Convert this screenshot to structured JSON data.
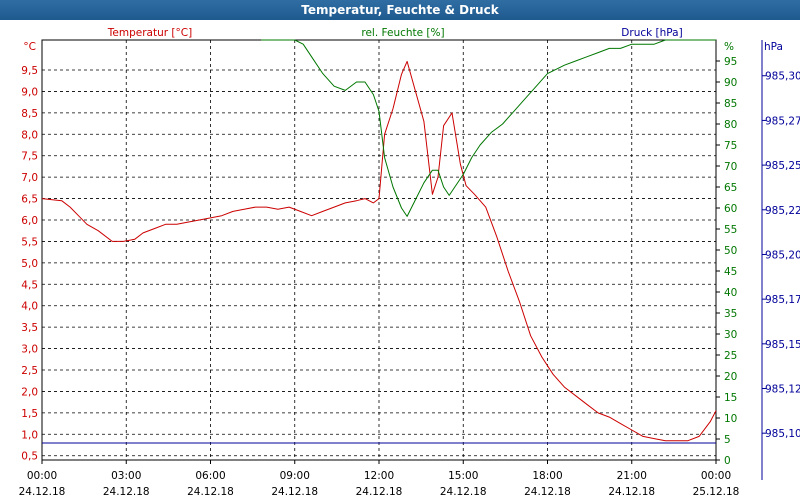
{
  "window": {
    "title": "Temperatur, Feuchte & Druck"
  },
  "chart_data": {
    "type": "line",
    "title": "Temperatur, Feuchte & Druck",
    "x_ticks": [
      {
        "time": "00:00",
        "date": "24.12.18"
      },
      {
        "time": "03:00",
        "date": "24.12.18"
      },
      {
        "time": "06:00",
        "date": "24.12.18"
      },
      {
        "time": "09:00",
        "date": "24.12.18"
      },
      {
        "time": "12:00",
        "date": "24.12.18"
      },
      {
        "time": "15:00",
        "date": "24.12.18"
      },
      {
        "time": "18:00",
        "date": "24.12.18"
      },
      {
        "time": "21:00",
        "date": "24.12.18"
      },
      {
        "time": "00:00",
        "date": "25.12.18"
      }
    ],
    "xlim": [
      0,
      24
    ],
    "axes": {
      "temp": {
        "label": "Temperatur [°C]",
        "unit": "°C",
        "min": 0.4,
        "max": 10.2,
        "ticks": [
          "0,5",
          "1,0",
          "1,5",
          "2,0",
          "2,5",
          "3,0",
          "3,5",
          "4,0",
          "4,5",
          "5,0",
          "5,5",
          "6,0",
          "6,5",
          "7,0",
          "7,5",
          "8,0",
          "8,5",
          "9,0",
          "9,5"
        ],
        "color": "#cc0000"
      },
      "hum": {
        "label": "rel. Feuchte [%]",
        "unit": "%",
        "min": 0,
        "max": 100,
        "ticks": [
          "0",
          "5",
          "10",
          "15",
          "20",
          "25",
          "30",
          "35",
          "40",
          "45",
          "50",
          "55",
          "60",
          "65",
          "70",
          "75",
          "80",
          "85",
          "90",
          "95"
        ],
        "color": "#007700"
      },
      "press": {
        "label": "Druck [hPa]",
        "unit": "hPa",
        "min": 985.085,
        "max": 985.32,
        "ticks": [
          "985,10",
          "985,12",
          "985,15",
          "985,17",
          "985,20",
          "985,22",
          "985,25",
          "985,27",
          "985,30"
        ],
        "tick_values": [
          985.1,
          985.125,
          985.15,
          985.175,
          985.2,
          985.225,
          985.25,
          985.275,
          985.3
        ],
        "color": "#000099"
      }
    },
    "series": [
      {
        "name": "Temperatur [°C]",
        "axis": "temp",
        "color": "#cc0000",
        "x": [
          0,
          0.7,
          1.0,
          1.3,
          1.6,
          2.0,
          2.5,
          2.9,
          3.3,
          3.6,
          4.0,
          4.4,
          4.8,
          5.2,
          5.6,
          6.0,
          6.4,
          6.8,
          7.2,
          7.6,
          8.0,
          8.4,
          8.8,
          9.2,
          9.6,
          10.0,
          10.4,
          10.8,
          11.2,
          11.5,
          11.8,
          12.0,
          12.2,
          12.5,
          12.8,
          13.0,
          13.3,
          13.6,
          13.9,
          14.1,
          14.3,
          14.6,
          14.9,
          15.1,
          15.4,
          15.8,
          16.2,
          16.6,
          17.0,
          17.4,
          17.8,
          18.2,
          18.6,
          19.0,
          19.4,
          19.8,
          20.2,
          20.6,
          21.0,
          21.4,
          21.8,
          22.2,
          22.6,
          23.0,
          23.4,
          23.8,
          24.0
        ],
        "y": [
          6.5,
          6.45,
          6.3,
          6.1,
          5.9,
          5.75,
          5.5,
          5.5,
          5.55,
          5.7,
          5.8,
          5.9,
          5.9,
          5.95,
          6.0,
          6.05,
          6.1,
          6.2,
          6.25,
          6.3,
          6.3,
          6.25,
          6.3,
          6.2,
          6.1,
          6.2,
          6.3,
          6.4,
          6.45,
          6.5,
          6.4,
          6.5,
          8.0,
          8.6,
          9.4,
          9.7,
          9.0,
          8.3,
          6.6,
          7.0,
          8.2,
          8.5,
          7.3,
          6.8,
          6.6,
          6.3,
          5.6,
          4.8,
          4.1,
          3.3,
          2.8,
          2.4,
          2.1,
          1.9,
          1.7,
          1.5,
          1.4,
          1.25,
          1.1,
          0.95,
          0.9,
          0.85,
          0.85,
          0.85,
          0.95,
          1.3,
          1.55
        ]
      },
      {
        "name": "rel. Feuchte [%]",
        "axis": "hum",
        "color": "#007700",
        "x": [
          7.8,
          8.5,
          9.0,
          9.3,
          9.6,
          10.0,
          10.4,
          10.8,
          11.2,
          11.5,
          11.8,
          12.0,
          12.2,
          12.5,
          12.8,
          13.0,
          13.3,
          13.6,
          13.9,
          14.1,
          14.3,
          14.5,
          14.7,
          15.0,
          15.3,
          15.6,
          16.0,
          16.4,
          16.8,
          17.2,
          17.6,
          18.0,
          18.3,
          18.6,
          19.0,
          19.4,
          19.8,
          20.2,
          20.6,
          21.0,
          21.4,
          21.8,
          22.2,
          22.6,
          23.0,
          23.4,
          23.8,
          24.0
        ],
        "y": [
          100,
          100,
          100,
          99,
          96,
          92,
          89,
          88,
          90,
          90,
          87,
          83,
          72,
          65,
          60,
          58,
          62,
          66,
          69,
          69,
          65,
          63,
          65,
          68,
          72,
          75,
          78,
          80,
          83,
          86,
          89,
          92,
          93,
          94,
          95,
          96,
          97,
          98,
          98,
          99,
          99,
          99,
          100,
          100,
          100,
          100,
          100,
          100
        ]
      },
      {
        "name": "Druck [hPa]",
        "axis": "press",
        "color": "#000099",
        "x": [
          0,
          24
        ],
        "y": [
          985.0945,
          985.0945
        ]
      }
    ],
    "grid": true,
    "legend": "top"
  }
}
